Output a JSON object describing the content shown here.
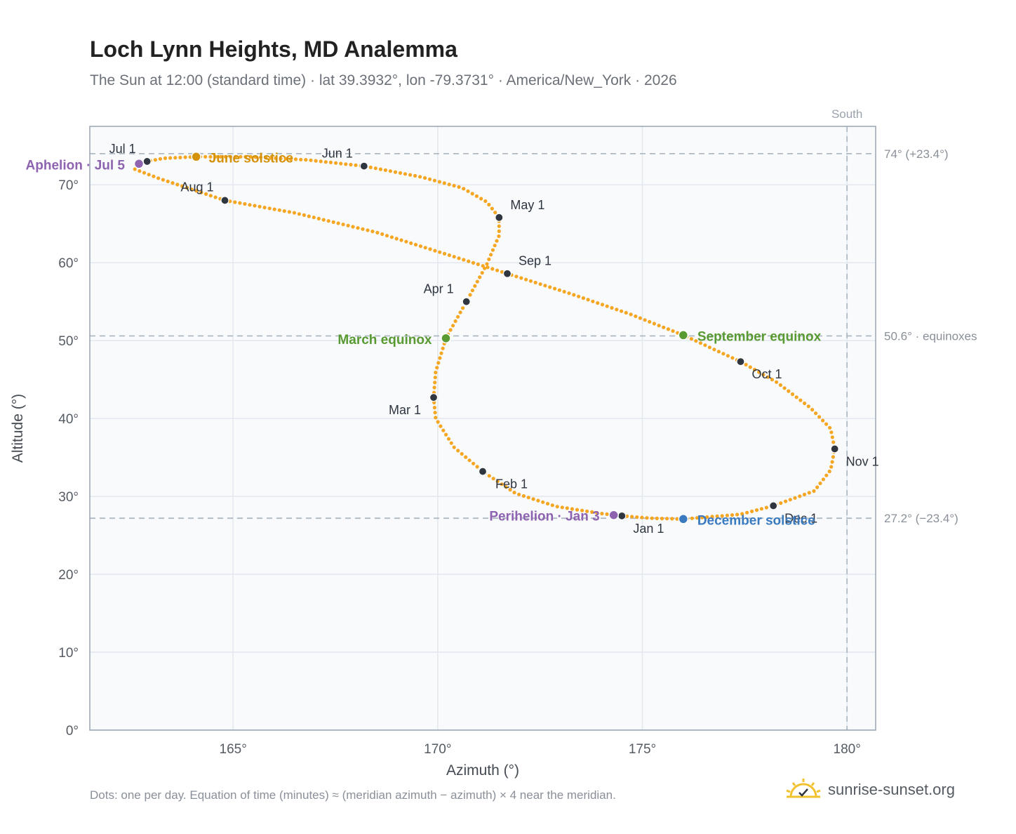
{
  "header": {
    "title": "Loch Lynn Heights, MD Analemma",
    "subtitle": "The Sun at 12:00 (standard time) · lat 39.3932°, lon -79.3731° · America/New_York · 2026"
  },
  "footer": {
    "note": "Dots: one per day. Equation of time (minutes) ≈ (meridian azimuth − azimuth) × 4 near the meridian.",
    "brand": "sunrise-sunset.org",
    "brand_icon": "sun-check-icon"
  },
  "chart_data": {
    "type": "scatter",
    "xlabel": "Azimuth (°)",
    "ylabel": "Altitude (°)",
    "xlim": [
      161.5,
      180.7
    ],
    "ylim": [
      0,
      77.5
    ],
    "x_ticks": [
      165,
      170,
      175,
      180
    ],
    "x_tick_labels": [
      "165°",
      "170°",
      "175°",
      "180°"
    ],
    "y_ticks": [
      0,
      10,
      20,
      30,
      40,
      50,
      60,
      70
    ],
    "y_tick_labels": [
      "0°",
      "10°",
      "20°",
      "30°",
      "40°",
      "50°",
      "60°",
      "70°"
    ],
    "grid": true,
    "colors": {
      "daily": "#f5a623",
      "month": "#2f3640",
      "solstice_june": "#d4920a",
      "solstice_december": "#3a7abf",
      "equinox": "#5a9a32",
      "apsis": "#8e63b0",
      "reference": "#b0bac4",
      "frame": "#9aa4b0"
    },
    "reference_lines": [
      {
        "axis": "x",
        "value": 180,
        "label": "South"
      },
      {
        "axis": "y",
        "value": 74,
        "label": "74° (+23.4°)"
      },
      {
        "axis": "y",
        "value": 50.6,
        "label": "50.6° · equinoxes"
      },
      {
        "axis": "y",
        "value": 27.2,
        "label": "27.2° (−23.4°)"
      }
    ],
    "month_points": [
      {
        "label": "Jan 1",
        "az": 174.5,
        "alt": 27.5
      },
      {
        "label": "Feb 1",
        "az": 171.1,
        "alt": 33.2
      },
      {
        "label": "Mar 1",
        "az": 169.9,
        "alt": 42.7
      },
      {
        "label": "Apr 1",
        "az": 170.7,
        "alt": 55.0
      },
      {
        "label": "May 1",
        "az": 171.5,
        "alt": 65.8
      },
      {
        "label": "Jun 1",
        "az": 168.2,
        "alt": 72.4
      },
      {
        "label": "Jul 1",
        "az": 162.9,
        "alt": 73.0
      },
      {
        "label": "Aug 1",
        "az": 164.8,
        "alt": 68.0
      },
      {
        "label": "Sep 1",
        "az": 171.7,
        "alt": 58.6
      },
      {
        "label": "Oct 1",
        "az": 177.4,
        "alt": 47.3
      },
      {
        "label": "Nov 1",
        "az": 179.7,
        "alt": 36.1
      },
      {
        "label": "Dec 1",
        "az": 178.2,
        "alt": 28.8
      }
    ],
    "events": [
      {
        "label": "June solstice",
        "az": 164.1,
        "alt": 73.6,
        "kind": "solstice_june"
      },
      {
        "label": "December solstice",
        "az": 176.0,
        "alt": 27.1,
        "kind": "solstice_december"
      },
      {
        "label": "March equinox",
        "az": 170.2,
        "alt": 50.3,
        "kind": "equinox"
      },
      {
        "label": "September equinox",
        "az": 176.0,
        "alt": 50.7,
        "kind": "equinox"
      },
      {
        "label": "Aphelion · Jul 5",
        "az": 162.7,
        "alt": 72.7,
        "kind": "apsis"
      },
      {
        "label": "Perihelion · Jan 3",
        "az": 174.3,
        "alt": 27.6,
        "kind": "apsis"
      }
    ],
    "daily_path": [
      [
        174.5,
        27.5
      ],
      [
        174.0,
        27.8
      ],
      [
        172.9,
        28.7
      ],
      [
        171.9,
        30.4
      ],
      [
        171.1,
        33.2
      ],
      [
        170.4,
        36.3
      ],
      [
        169.95,
        40.0
      ],
      [
        169.9,
        42.7
      ],
      [
        169.95,
        46.0
      ],
      [
        170.2,
        50.3
      ],
      [
        170.7,
        55.0
      ],
      [
        171.2,
        59.8
      ],
      [
        171.5,
        63.5
      ],
      [
        171.5,
        65.8
      ],
      [
        171.2,
        67.8
      ],
      [
        170.6,
        69.6
      ],
      [
        169.6,
        71.0
      ],
      [
        168.2,
        72.4
      ],
      [
        166.8,
        73.2
      ],
      [
        165.4,
        73.6
      ],
      [
        164.1,
        73.6
      ],
      [
        163.3,
        73.4
      ],
      [
        162.9,
        73.0
      ],
      [
        162.6,
        72.5
      ],
      [
        162.6,
        72.0
      ],
      [
        163.2,
        70.8
      ],
      [
        164.8,
        68.0
      ],
      [
        166.5,
        66.4
      ],
      [
        168.5,
        63.9
      ],
      [
        170.2,
        61.1
      ],
      [
        171.7,
        58.6
      ],
      [
        173.2,
        56.1
      ],
      [
        174.7,
        53.4
      ],
      [
        176.0,
        50.7
      ],
      [
        177.4,
        47.3
      ],
      [
        178.3,
        44.6
      ],
      [
        179.1,
        41.4
      ],
      [
        179.6,
        38.7
      ],
      [
        179.7,
        36.1
      ],
      [
        179.6,
        33.4
      ],
      [
        179.2,
        30.7
      ],
      [
        178.2,
        28.8
      ],
      [
        177.4,
        27.7
      ],
      [
        176.0,
        27.1
      ],
      [
        175.2,
        27.2
      ],
      [
        174.5,
        27.5
      ]
    ]
  }
}
